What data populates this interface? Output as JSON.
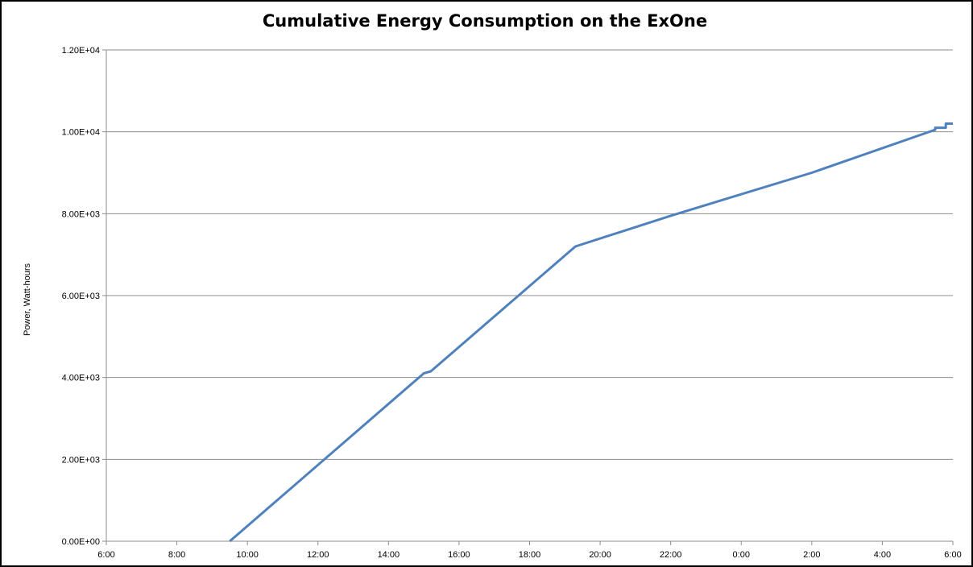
{
  "chart_data": {
    "type": "line",
    "title": "Cumulative Energy Consumption on the ExOne",
    "xlabel": "",
    "ylabel": "Power, Watt-hours",
    "x_ticks": [
      "6:00",
      "8:00",
      "10:00",
      "12:00",
      "14:00",
      "16:00",
      "18:00",
      "20:00",
      "22:00",
      "0:00",
      "2:00",
      "4:00",
      "6:00"
    ],
    "y_ticks": [
      "0.00E+00",
      "2.00E+03",
      "4.00E+03",
      "6.00E+03",
      "8.00E+03",
      "1.00E+04",
      "1.20E+04"
    ],
    "xlim_hours": [
      6,
      30
    ],
    "ylim": [
      0,
      12000
    ],
    "grid": "horizontal",
    "line_color": "#4f81bd",
    "series": [
      {
        "x_hours": [
          9.5,
          15.0,
          15.2,
          19.3,
          22.0,
          26.0,
          29.5,
          29.5,
          29.8,
          29.8,
          30.0
        ],
        "values": [
          0,
          4100,
          4150,
          7200,
          7950,
          9000,
          10050,
          10100,
          10100,
          10200,
          10200
        ]
      }
    ]
  }
}
